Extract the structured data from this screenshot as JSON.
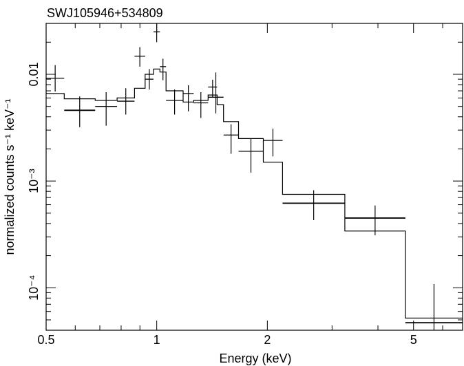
{
  "chart_data": {
    "type": "scatter",
    "title": "SWJ105946+534809",
    "xlabel": "Energy (keV)",
    "ylabel": "normalized counts s⁻¹ keV⁻¹",
    "xscale": "log",
    "yscale": "log",
    "xlim": [
      0.5,
      6.8
    ],
    "ylim": [
      4e-05,
      0.03
    ],
    "x_ticks": [
      {
        "value": 0.5,
        "label": "0.5"
      },
      {
        "value": 1,
        "label": "1"
      },
      {
        "value": 2,
        "label": "2"
      },
      {
        "value": 5,
        "label": "5"
      }
    ],
    "y_ticks": [
      {
        "value": 0.01,
        "label": "0.01"
      },
      {
        "value": 0.001,
        "label": "10⁻³"
      },
      {
        "value": 0.0001,
        "label": "10⁻⁴"
      }
    ],
    "grid": false,
    "series": [
      {
        "style": "errorbars",
        "points": [
          {
            "x0": 0.5,
            "x1": 0.56,
            "y": 0.0092,
            "ylo": 0.0069,
            "yhi": 0.0122
          },
          {
            "x0": 0.56,
            "x1": 0.68,
            "y": 0.0046,
            "ylo": 0.0032,
            "yhi": 0.0062
          },
          {
            "x0": 0.68,
            "x1": 0.78,
            "y": 0.005,
            "ylo": 0.0033,
            "yhi": 0.0068
          },
          {
            "x0": 0.78,
            "x1": 0.87,
            "y": 0.0056,
            "ylo": 0.0042,
            "yhi": 0.0074
          },
          {
            "x0": 0.87,
            "x1": 0.93,
            "y": 0.0148,
            "ylo": 0.0118,
            "yhi": 0.018
          },
          {
            "x0": 0.93,
            "x1": 0.98,
            "y": 0.009,
            "ylo": 0.0072,
            "yhi": 0.0112
          },
          {
            "x0": 0.98,
            "x1": 1.02,
            "y": 0.025,
            "ylo": 0.02,
            "yhi": 0.03
          },
          {
            "x0": 1.02,
            "x1": 1.06,
            "y": 0.0118,
            "ylo": 0.0088,
            "yhi": 0.014
          },
          {
            "x0": 1.06,
            "x1": 1.18,
            "y": 0.0057,
            "ylo": 0.0042,
            "yhi": 0.0072
          },
          {
            "x0": 1.18,
            "x1": 1.26,
            "y": 0.0066,
            "ylo": 0.0045,
            "yhi": 0.0079
          },
          {
            "x0": 1.26,
            "x1": 1.38,
            "y": 0.0054,
            "ylo": 0.0039,
            "yhi": 0.0068
          },
          {
            "x0": 1.38,
            "x1": 1.46,
            "y": 0.0076,
            "ylo": 0.0061,
            "yhi": 0.0089
          },
          {
            "x0": 1.38,
            "x1": 1.52,
            "y": 0.0061,
            "ylo": 0.0043,
            "yhi": 0.0104
          },
          {
            "x0": 1.52,
            "x1": 1.67,
            "y": 0.0027,
            "ylo": 0.0018,
            "yhi": 0.0034
          },
          {
            "x0": 1.67,
            "x1": 1.95,
            "y": 0.0019,
            "ylo": 0.0012,
            "yhi": 0.0025
          },
          {
            "x0": 1.95,
            "x1": 2.2,
            "y": 0.0024,
            "ylo": 0.0017,
            "yhi": 0.0031
          },
          {
            "x0": 2.2,
            "x1": 3.25,
            "y": 0.00062,
            "ylo": 0.00043,
            "yhi": 0.00082
          },
          {
            "x0": 3.25,
            "x1": 4.75,
            "y": 0.00045,
            "ylo": 0.00031,
            "yhi": 0.00059
          },
          {
            "x0": 4.75,
            "x1": 6.8,
            "y": 4.7e-05,
            "ylo": 4e-05,
            "yhi": 0.000108
          }
        ]
      },
      {
        "style": "step-model",
        "points": [
          {
            "x0": 0.5,
            "x1": 0.56,
            "y": 0.0066
          },
          {
            "x0": 0.56,
            "x1": 0.68,
            "y": 0.0059
          },
          {
            "x0": 0.68,
            "x1": 0.78,
            "y": 0.0057
          },
          {
            "x0": 0.78,
            "x1": 0.87,
            "y": 0.006
          },
          {
            "x0": 0.87,
            "x1": 0.93,
            "y": 0.0074
          },
          {
            "x0": 0.93,
            "x1": 0.98,
            "y": 0.01
          },
          {
            "x0": 0.98,
            "x1": 1.02,
            "y": 0.0112
          },
          {
            "x0": 1.02,
            "x1": 1.06,
            "y": 0.0105
          },
          {
            "x0": 1.06,
            "x1": 1.18,
            "y": 0.007
          },
          {
            "x0": 1.18,
            "x1": 1.26,
            "y": 0.0055
          },
          {
            "x0": 1.26,
            "x1": 1.38,
            "y": 0.0057
          },
          {
            "x0": 1.38,
            "x1": 1.46,
            "y": 0.0064
          },
          {
            "x0": 1.46,
            "x1": 1.52,
            "y": 0.0052
          },
          {
            "x0": 1.52,
            "x1": 1.67,
            "y": 0.0036
          },
          {
            "x0": 1.67,
            "x1": 1.95,
            "y": 0.0025
          },
          {
            "x0": 1.95,
            "x1": 2.2,
            "y": 0.0015
          },
          {
            "x0": 2.2,
            "x1": 3.25,
            "y": 0.00075
          },
          {
            "x0": 3.25,
            "x1": 4.75,
            "y": 0.00034
          },
          {
            "x0": 4.75,
            "x1": 6.8,
            "y": 5.2e-05
          }
        ]
      }
    ]
  }
}
